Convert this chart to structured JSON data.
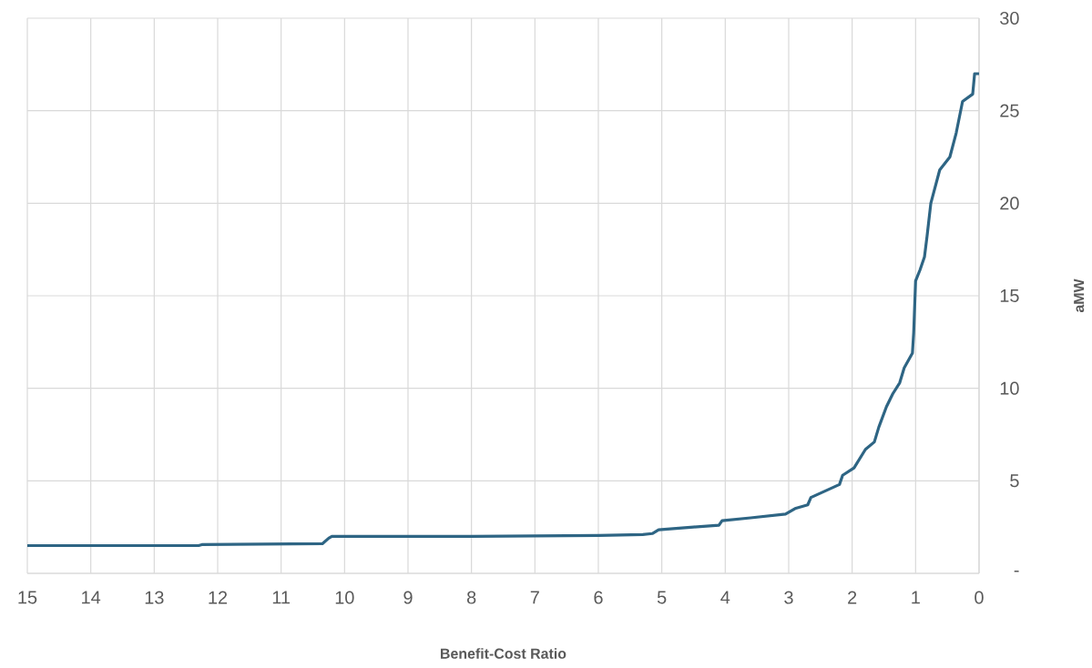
{
  "chart_data": {
    "type": "line",
    "xlabel": "Benefit-Cost Ratio",
    "ylabel": "aMW",
    "x": [
      15,
      12.3,
      12.25,
      10.35,
      10.25,
      10.2,
      8,
      6,
      5.3,
      5.15,
      5.05,
      4.5,
      4.1,
      4.05,
      3.6,
      3.05,
      2.9,
      2.7,
      2.65,
      2.2,
      2.15,
      1.97,
      1.79,
      1.65,
      1.58,
      1.46,
      1.36,
      1.25,
      1.18,
      1.05,
      1.03,
      1.0,
      0.93,
      0.86,
      0.82,
      0.76,
      0.62,
      0.46,
      0.36,
      0.26,
      0.1,
      0.07,
      0
    ],
    "series": [
      {
        "color": "#2e6584",
        "values": [
          1.5,
          1.5,
          1.55,
          1.6,
          1.9,
          2.0,
          2.0,
          2.05,
          2.1,
          2.15,
          2.35,
          2.5,
          2.6,
          2.85,
          3.0,
          3.2,
          3.5,
          3.7,
          4.1,
          4.8,
          5.3,
          5.7,
          6.7,
          7.1,
          7.9,
          9.0,
          9.7,
          10.3,
          11.1,
          11.9,
          13,
          15.8,
          16.4,
          17.1,
          18.2,
          20.0,
          21.8,
          22.5,
          23.8,
          25.5,
          25.9,
          27.0,
          27.0
        ]
      }
    ],
    "xlim": [
      15,
      0
    ],
    "ylim": [
      0,
      30
    ],
    "xticks": [
      15,
      14,
      13,
      12,
      11,
      10,
      9,
      8,
      7,
      6,
      5,
      4,
      3,
      2,
      1,
      0
    ],
    "yticks": [
      {
        "value": 0,
        "label": "-"
      },
      5,
      10,
      15,
      20,
      25,
      30
    ],
    "grid": true
  }
}
